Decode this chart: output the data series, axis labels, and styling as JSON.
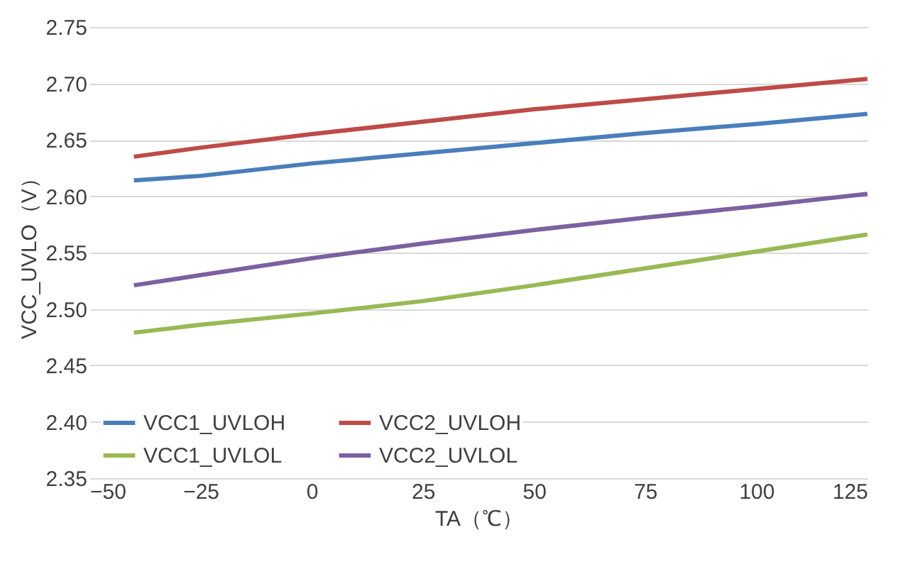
{
  "chart_data": {
    "type": "line",
    "xlabel": "TA（℃）",
    "ylabel": "VCC_UVLO（V）",
    "x": [
      -40,
      -25,
      0,
      25,
      50,
      75,
      100,
      125
    ],
    "series": [
      {
        "name": "VCC1_UVLOH",
        "color": "#4a7ebb",
        "values": [
          2.614,
          2.618,
          2.629,
          2.638,
          2.647,
          2.656,
          2.664,
          2.673
        ]
      },
      {
        "name": "VCC2_UVLOH",
        "color": "#be4b48",
        "values": [
          2.635,
          2.643,
          2.655,
          2.666,
          2.677,
          2.686,
          2.695,
          2.704
        ]
      },
      {
        "name": "VCC1_UVLOL",
        "color": "#98b954",
        "values": [
          2.479,
          2.486,
          2.496,
          2.507,
          2.521,
          2.536,
          2.551,
          2.566
        ]
      },
      {
        "name": "VCC2_UVLOL",
        "color": "#7d60a0",
        "values": [
          2.521,
          2.53,
          2.545,
          2.558,
          2.57,
          2.581,
          2.591,
          2.602
        ]
      }
    ],
    "xlim": [
      -50,
      125
    ],
    "xticks": [
      -50,
      -25,
      0,
      25,
      50,
      75,
      100,
      125
    ],
    "ylim": [
      2.35,
      2.75
    ],
    "yticks": [
      2.35,
      {
        "value": 2.4,
        "label": "2.40"
      },
      2.45,
      {
        "value": 2.5,
        "label": "2.50"
      },
      2.55,
      {
        "value": 2.6,
        "label": "2.60"
      },
      2.65,
      {
        "value": 2.7,
        "label": "2.70"
      },
      2.75
    ],
    "grid": "y",
    "legend": "bottom left",
    "marker": "none",
    "line_style": "solid"
  }
}
